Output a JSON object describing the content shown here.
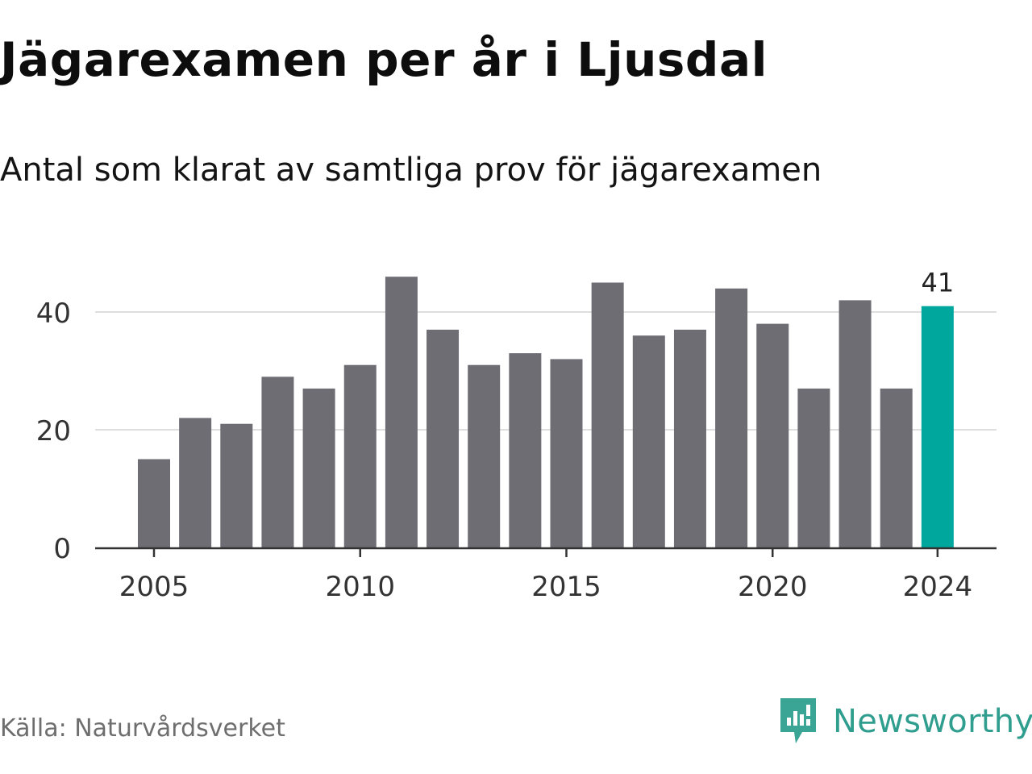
{
  "title": "Jägarexamen per år i Ljusdal",
  "subtitle": "Antal som klarat av samtliga prov för jägarexamen",
  "source": "Källa: Naturvårdsverket",
  "brand": {
    "name": "Newsworthy",
    "icon": "newsworthy-logo-icon",
    "color": "#2f9e8f"
  },
  "chart_data": {
    "type": "bar",
    "x": [
      2005,
      2006,
      2007,
      2008,
      2009,
      2010,
      2011,
      2012,
      2013,
      2014,
      2015,
      2016,
      2017,
      2018,
      2019,
      2020,
      2021,
      2022,
      2023,
      2024
    ],
    "values": [
      15,
      22,
      21,
      29,
      27,
      31,
      46,
      37,
      31,
      33,
      32,
      45,
      36,
      37,
      44,
      38,
      27,
      42,
      27,
      41
    ],
    "x_ticks": [
      2005,
      2010,
      2015,
      2020,
      2024
    ],
    "y_ticks": [
      0,
      20,
      40
    ],
    "ylim": [
      0,
      46
    ],
    "grid": true,
    "highlight": {
      "x": 2024,
      "label": "41",
      "color": "#00a79d"
    },
    "bar_color": "#6e6d74",
    "xlabel": "",
    "ylabel": ""
  }
}
